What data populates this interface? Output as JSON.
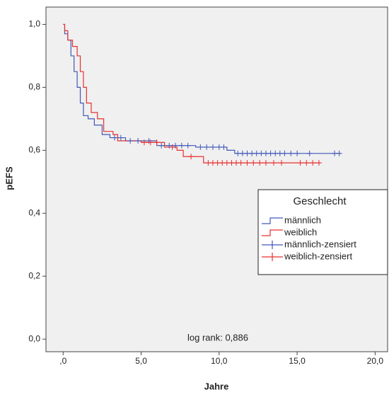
{
  "chart_data": {
    "type": "kaplan-meier",
    "x_label": "Jahre",
    "y_label": "pEFS",
    "annotation": "log rank: 0,886",
    "legend_title": "Geschlecht",
    "xlim": [
      -1.1,
      20.8
    ],
    "ylim": [
      -0.04,
      1.055
    ],
    "xticks": [
      {
        "value": 0,
        "label": ",0"
      },
      {
        "value": 5,
        "label": "5,0"
      },
      {
        "value": 10,
        "label": "10,0"
      },
      {
        "value": 15,
        "label": "15,0"
      },
      {
        "value": 20,
        "label": "20,0"
      }
    ],
    "yticks": [
      {
        "value": 0,
        "label": "0,0"
      },
      {
        "value": 0.2,
        "label": "0,2"
      },
      {
        "value": 0.4,
        "label": "0,4"
      },
      {
        "value": 0.6,
        "label": "0,6"
      },
      {
        "value": 0.8,
        "label": "0,8"
      },
      {
        "value": 1,
        "label": "1,0"
      }
    ],
    "series": [
      {
        "name": "männlich",
        "color": "#4058b8",
        "step": true,
        "x": [
          0,
          0.1,
          0.3,
          0.5,
          0.7,
          0.9,
          1.1,
          1.3,
          1.6,
          2.0,
          2.5,
          3.0,
          4.0,
          6.0,
          8.5,
          10.5,
          11.0,
          17.8
        ],
        "values": [
          1.0,
          0.97,
          0.95,
          0.9,
          0.85,
          0.8,
          0.75,
          0.71,
          0.7,
          0.68,
          0.65,
          0.64,
          0.63,
          0.615,
          0.61,
          0.6,
          0.59,
          0.59
        ]
      },
      {
        "name": "weiblich",
        "color": "#e83030",
        "step": true,
        "x": [
          0,
          0.1,
          0.3,
          0.6,
          0.9,
          1.1,
          1.3,
          1.5,
          1.8,
          2.2,
          2.6,
          3.2,
          3.5,
          5.0,
          6.5,
          7.3,
          7.7,
          9.0,
          16.5
        ],
        "values": [
          1.0,
          0.98,
          0.95,
          0.93,
          0.9,
          0.85,
          0.8,
          0.75,
          0.72,
          0.7,
          0.66,
          0.65,
          0.63,
          0.625,
          0.61,
          0.6,
          0.58,
          0.56,
          0.56
        ]
      },
      {
        "name": "männlich-zensiert",
        "color": "#4058b8",
        "step": false,
        "x": [
          3.3,
          3.7,
          4.3,
          4.8,
          5.5,
          6.3,
          6.8,
          7.2,
          7.6,
          8.0,
          8.8,
          9.2,
          9.6,
          10.0,
          10.3,
          11.2,
          11.5,
          11.8,
          12.1,
          12.4,
          12.7,
          13.0,
          13.3,
          13.6,
          13.9,
          14.2,
          14.6,
          15.0,
          15.8,
          17.4,
          17.7
        ],
        "values": [
          0.64,
          0.64,
          0.63,
          0.63,
          0.63,
          0.615,
          0.615,
          0.615,
          0.615,
          0.615,
          0.61,
          0.61,
          0.61,
          0.61,
          0.61,
          0.59,
          0.59,
          0.59,
          0.59,
          0.59,
          0.59,
          0.59,
          0.59,
          0.59,
          0.59,
          0.59,
          0.59,
          0.59,
          0.59,
          0.59,
          0.59
        ]
      },
      {
        "name": "weiblich-zensiert",
        "color": "#e83030",
        "step": false,
        "x": [
          5.2,
          5.6,
          6.0,
          7.0,
          8.2,
          9.3,
          9.6,
          9.9,
          10.2,
          10.5,
          10.8,
          11.1,
          11.4,
          11.8,
          12.2,
          12.6,
          13.0,
          13.5,
          14.0,
          15.2,
          15.6,
          16.0,
          16.4
        ],
        "values": [
          0.625,
          0.625,
          0.625,
          0.61,
          0.58,
          0.56,
          0.56,
          0.56,
          0.56,
          0.56,
          0.56,
          0.56,
          0.56,
          0.56,
          0.56,
          0.56,
          0.56,
          0.56,
          0.56,
          0.56,
          0.56,
          0.56,
          0.56
        ]
      }
    ]
  }
}
